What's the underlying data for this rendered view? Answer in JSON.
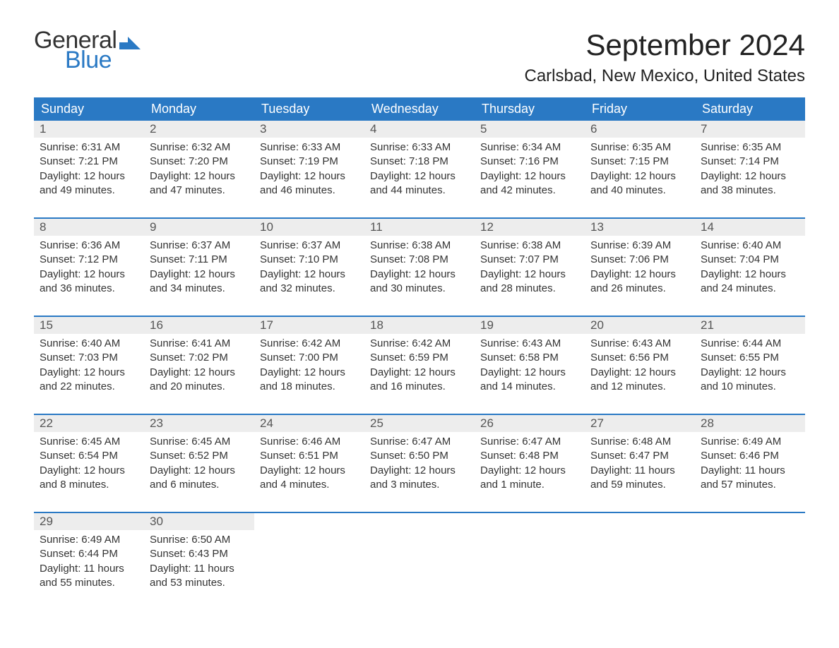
{
  "brand": {
    "line1": "General",
    "line2": "Blue",
    "mark_color": "#2a79c4",
    "text_color": "#333333"
  },
  "title": "September 2024",
  "location": "Carlsbad, New Mexico, United States",
  "colors": {
    "header_bg": "#2a79c4",
    "header_text": "#ffffff",
    "daynum_bg": "#ededed",
    "week_border": "#2a79c4",
    "body_text": "#333333",
    "background": "#ffffff"
  },
  "day_headers": [
    "Sunday",
    "Monday",
    "Tuesday",
    "Wednesday",
    "Thursday",
    "Friday",
    "Saturday"
  ],
  "labels": {
    "sunrise_prefix": "Sunrise: ",
    "sunset_prefix": "Sunset: ",
    "daylight_prefix": "Daylight: "
  },
  "weeks": [
    [
      {
        "day": "1",
        "sunrise": "6:31 AM",
        "sunset": "7:21 PM",
        "daylight1": "12 hours",
        "daylight2": "and 49 minutes."
      },
      {
        "day": "2",
        "sunrise": "6:32 AM",
        "sunset": "7:20 PM",
        "daylight1": "12 hours",
        "daylight2": "and 47 minutes."
      },
      {
        "day": "3",
        "sunrise": "6:33 AM",
        "sunset": "7:19 PM",
        "daylight1": "12 hours",
        "daylight2": "and 46 minutes."
      },
      {
        "day": "4",
        "sunrise": "6:33 AM",
        "sunset": "7:18 PM",
        "daylight1": "12 hours",
        "daylight2": "and 44 minutes."
      },
      {
        "day": "5",
        "sunrise": "6:34 AM",
        "sunset": "7:16 PM",
        "daylight1": "12 hours",
        "daylight2": "and 42 minutes."
      },
      {
        "day": "6",
        "sunrise": "6:35 AM",
        "sunset": "7:15 PM",
        "daylight1": "12 hours",
        "daylight2": "and 40 minutes."
      },
      {
        "day": "7",
        "sunrise": "6:35 AM",
        "sunset": "7:14 PM",
        "daylight1": "12 hours",
        "daylight2": "and 38 minutes."
      }
    ],
    [
      {
        "day": "8",
        "sunrise": "6:36 AM",
        "sunset": "7:12 PM",
        "daylight1": "12 hours",
        "daylight2": "and 36 minutes."
      },
      {
        "day": "9",
        "sunrise": "6:37 AM",
        "sunset": "7:11 PM",
        "daylight1": "12 hours",
        "daylight2": "and 34 minutes."
      },
      {
        "day": "10",
        "sunrise": "6:37 AM",
        "sunset": "7:10 PM",
        "daylight1": "12 hours",
        "daylight2": "and 32 minutes."
      },
      {
        "day": "11",
        "sunrise": "6:38 AM",
        "sunset": "7:08 PM",
        "daylight1": "12 hours",
        "daylight2": "and 30 minutes."
      },
      {
        "day": "12",
        "sunrise": "6:38 AM",
        "sunset": "7:07 PM",
        "daylight1": "12 hours",
        "daylight2": "and 28 minutes."
      },
      {
        "day": "13",
        "sunrise": "6:39 AM",
        "sunset": "7:06 PM",
        "daylight1": "12 hours",
        "daylight2": "and 26 minutes."
      },
      {
        "day": "14",
        "sunrise": "6:40 AM",
        "sunset": "7:04 PM",
        "daylight1": "12 hours",
        "daylight2": "and 24 minutes."
      }
    ],
    [
      {
        "day": "15",
        "sunrise": "6:40 AM",
        "sunset": "7:03 PM",
        "daylight1": "12 hours",
        "daylight2": "and 22 minutes."
      },
      {
        "day": "16",
        "sunrise": "6:41 AM",
        "sunset": "7:02 PM",
        "daylight1": "12 hours",
        "daylight2": "and 20 minutes."
      },
      {
        "day": "17",
        "sunrise": "6:42 AM",
        "sunset": "7:00 PM",
        "daylight1": "12 hours",
        "daylight2": "and 18 minutes."
      },
      {
        "day": "18",
        "sunrise": "6:42 AM",
        "sunset": "6:59 PM",
        "daylight1": "12 hours",
        "daylight2": "and 16 minutes."
      },
      {
        "day": "19",
        "sunrise": "6:43 AM",
        "sunset": "6:58 PM",
        "daylight1": "12 hours",
        "daylight2": "and 14 minutes."
      },
      {
        "day": "20",
        "sunrise": "6:43 AM",
        "sunset": "6:56 PM",
        "daylight1": "12 hours",
        "daylight2": "and 12 minutes."
      },
      {
        "day": "21",
        "sunrise": "6:44 AM",
        "sunset": "6:55 PM",
        "daylight1": "12 hours",
        "daylight2": "and 10 minutes."
      }
    ],
    [
      {
        "day": "22",
        "sunrise": "6:45 AM",
        "sunset": "6:54 PM",
        "daylight1": "12 hours",
        "daylight2": "and 8 minutes."
      },
      {
        "day": "23",
        "sunrise": "6:45 AM",
        "sunset": "6:52 PM",
        "daylight1": "12 hours",
        "daylight2": "and 6 minutes."
      },
      {
        "day": "24",
        "sunrise": "6:46 AM",
        "sunset": "6:51 PM",
        "daylight1": "12 hours",
        "daylight2": "and 4 minutes."
      },
      {
        "day": "25",
        "sunrise": "6:47 AM",
        "sunset": "6:50 PM",
        "daylight1": "12 hours",
        "daylight2": "and 3 minutes."
      },
      {
        "day": "26",
        "sunrise": "6:47 AM",
        "sunset": "6:48 PM",
        "daylight1": "12 hours",
        "daylight2": "and 1 minute."
      },
      {
        "day": "27",
        "sunrise": "6:48 AM",
        "sunset": "6:47 PM",
        "daylight1": "11 hours",
        "daylight2": "and 59 minutes."
      },
      {
        "day": "28",
        "sunrise": "6:49 AM",
        "sunset": "6:46 PM",
        "daylight1": "11 hours",
        "daylight2": "and 57 minutes."
      }
    ],
    [
      {
        "day": "29",
        "sunrise": "6:49 AM",
        "sunset": "6:44 PM",
        "daylight1": "11 hours",
        "daylight2": "and 55 minutes."
      },
      {
        "day": "30",
        "sunrise": "6:50 AM",
        "sunset": "6:43 PM",
        "daylight1": "11 hours",
        "daylight2": "and 53 minutes."
      },
      null,
      null,
      null,
      null,
      null
    ]
  ]
}
